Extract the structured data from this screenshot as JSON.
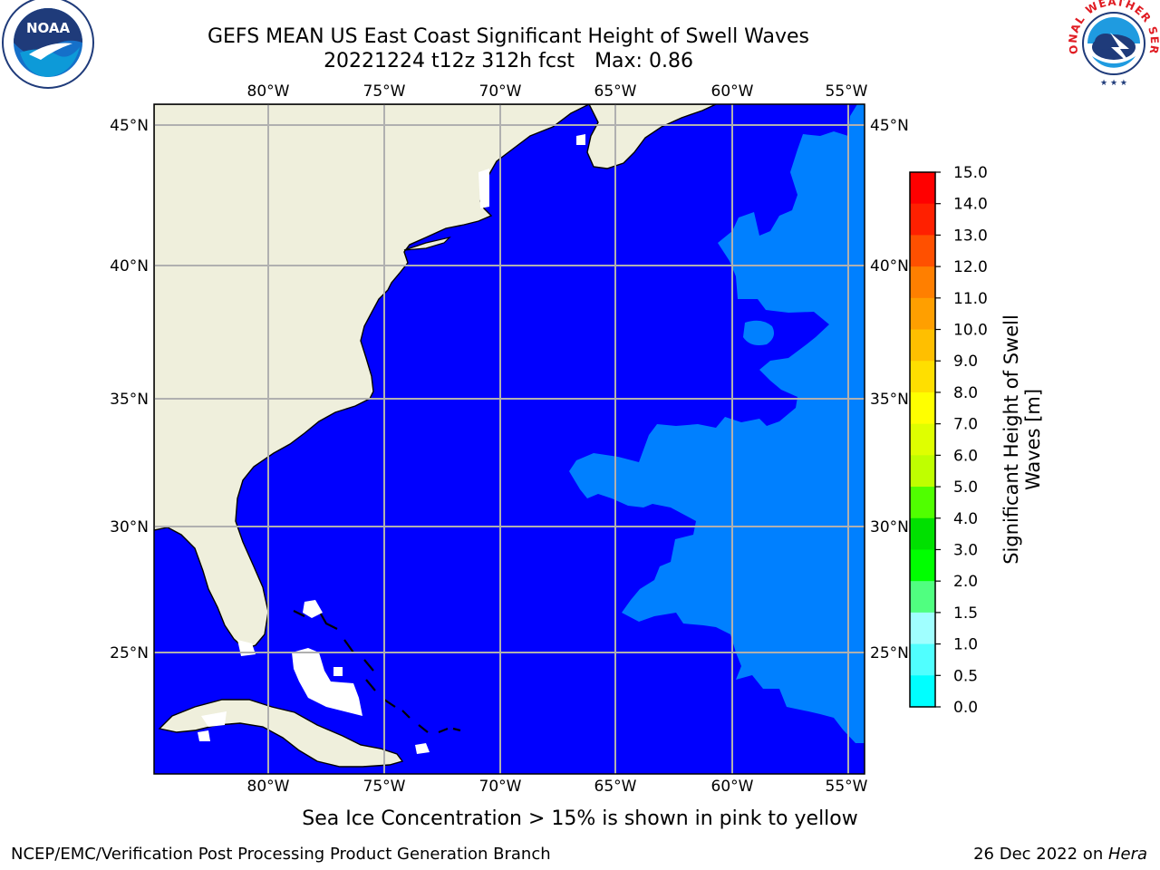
{
  "title": {
    "line1": "GEFS MEAN US East Coast Significant Height of Swell Waves",
    "line2_run": "20221224 t12z 312h fcst",
    "line2_max": "Max: 0.86"
  },
  "map": {
    "lon_labels": [
      "80°W",
      "75°W",
      "70°W",
      "65°W",
      "60°W",
      "55°W"
    ],
    "lat_labels": [
      "45°N",
      "40°N",
      "35°N",
      "30°N",
      "25°N"
    ],
    "colors": {
      "ocean_low": "#0000ff",
      "ocean_mid": "#0080ff",
      "land": "#efefdc",
      "ice_mask": "#ffffff",
      "grid": "#b0b0b0"
    }
  },
  "colorbar": {
    "title_line1": "Significant Height of Swell",
    "title_line2": "Waves [m]",
    "tick_labels": [
      "15.0",
      "14.0",
      "13.0",
      "12.0",
      "11.0",
      "10.0",
      "9.0",
      "8.0",
      "7.0",
      "6.0",
      "5.0",
      "4.0",
      "3.0",
      "2.0",
      "1.5",
      "1.0",
      "0.5",
      "0.0"
    ],
    "colors_top_to_bottom": [
      "#ff0000",
      "#ff2000",
      "#ff5000",
      "#ff7f00",
      "#ff9f00",
      "#ffbf00",
      "#ffdf00",
      "#ffff00",
      "#dfff00",
      "#bfff00",
      "#50ff00",
      "#00e000",
      "#00ff00",
      "#50ff80",
      "#a0ffff",
      "#50ffff",
      "#00ffff",
      "#0080ff",
      "#0000ff"
    ]
  },
  "logos": {
    "left_icon": "noaa-logo-icon",
    "left_text": "NOAA",
    "right_icon": "nws-logo-icon",
    "right_text": "NATIONAL WEATHER SERVICE"
  },
  "footer": {
    "note": "Sea Ice Concentration > 15% is shown in pink to yellow",
    "left": "NCEP/EMC/Verification Post Processing Product Generation Branch",
    "right_date": "26 Dec 2022 on ",
    "right_host": "Hera"
  }
}
